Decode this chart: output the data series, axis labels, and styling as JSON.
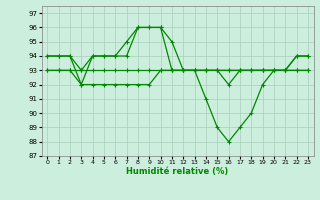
{
  "title": "",
  "xlabel": "Humidité relative (%)",
  "ylabel": "",
  "bg_color": "#cceedd",
  "grid_color": "#aaccbb",
  "line_color": "#008800",
  "marker": "+",
  "markersize": 3.5,
  "linewidth": 0.9,
  "xlim": [
    -0.5,
    23.5
  ],
  "ylim": [
    87,
    97.5
  ],
  "yticks": [
    87,
    88,
    89,
    90,
    91,
    92,
    93,
    94,
    95,
    96,
    97
  ],
  "xticks": [
    0,
    1,
    2,
    3,
    4,
    5,
    6,
    7,
    8,
    9,
    10,
    11,
    12,
    13,
    14,
    15,
    16,
    17,
    18,
    19,
    20,
    21,
    22,
    23
  ],
  "lines": [
    {
      "x": [
        0,
        1,
        2,
        3,
        4,
        5,
        6,
        7,
        8,
        9,
        10,
        11,
        12,
        13,
        14,
        15,
        16,
        17,
        18,
        19,
        20,
        21,
        22,
        23
      ],
      "y": [
        94,
        94,
        94,
        92,
        94,
        94,
        94,
        94,
        96,
        96,
        96,
        95,
        93,
        93,
        91,
        89,
        88,
        89,
        90,
        92,
        93,
        93,
        94,
        94
      ]
    },
    {
      "x": [
        0,
        1,
        2,
        3,
        4,
        5,
        6,
        7,
        8,
        9,
        10,
        11,
        12,
        13,
        14,
        15,
        16,
        17,
        18,
        19,
        20,
        21,
        22,
        23
      ],
      "y": [
        94,
        94,
        94,
        93,
        94,
        94,
        94,
        95,
        96,
        96,
        96,
        93,
        93,
        93,
        93,
        93,
        93,
        93,
        93,
        93,
        93,
        93,
        94,
        94
      ]
    },
    {
      "x": [
        0,
        1,
        2,
        3,
        4,
        5,
        6,
        7,
        8,
        9,
        10,
        11,
        12,
        13,
        14,
        15,
        16,
        17,
        18,
        19,
        20,
        21,
        22,
        23
      ],
      "y": [
        93,
        93,
        93,
        93,
        93,
        93,
        93,
        93,
        93,
        93,
        93,
        93,
        93,
        93,
        93,
        93,
        93,
        93,
        93,
        93,
        93,
        93,
        93,
        93
      ]
    },
    {
      "x": [
        0,
        1,
        2,
        3,
        4,
        5,
        6,
        7,
        8,
        9,
        10,
        11,
        12,
        13,
        14,
        15,
        16,
        17,
        18,
        19,
        20,
        21,
        22,
        23
      ],
      "y": [
        93,
        93,
        93,
        92,
        92,
        92,
        92,
        92,
        92,
        92,
        93,
        93,
        93,
        93,
        93,
        93,
        92,
        93,
        93,
        93,
        93,
        93,
        93,
        93
      ]
    }
  ]
}
